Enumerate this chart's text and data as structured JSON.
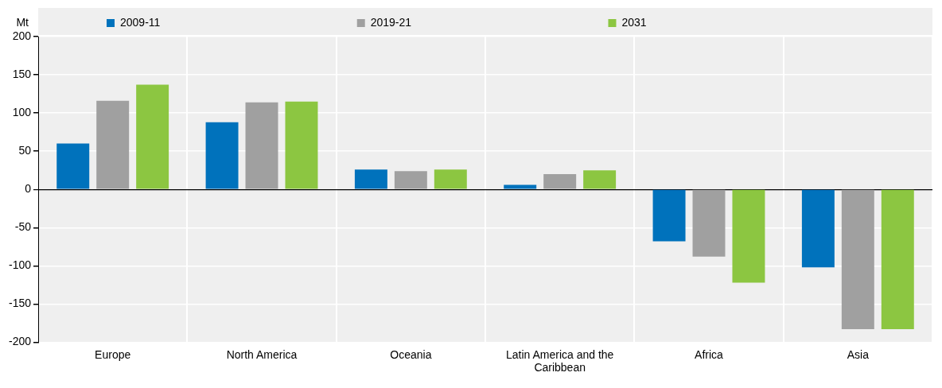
{
  "chart_data": {
    "type": "bar",
    "ylabel": "Mt",
    "categories": [
      "Europe",
      "North America",
      "Oceania",
      "Latin America and the Caribbean",
      "Africa",
      "Asia"
    ],
    "series": [
      {
        "name": "2009-11",
        "color": "#0072bc",
        "values": [
          60,
          88,
          26,
          6,
          -68,
          -102
        ]
      },
      {
        "name": "2019-21",
        "color": "#a0a0a0",
        "values": [
          116,
          114,
          24,
          20,
          -88,
          -183
        ]
      },
      {
        "name": "2031",
        "color": "#8cc641",
        "values": [
          137,
          115,
          26,
          25,
          -122,
          -183
        ]
      }
    ],
    "ylim": [
      -200,
      200
    ],
    "yticks": [
      -200,
      -150,
      -100,
      -50,
      0,
      50,
      100,
      150,
      200
    ],
    "grid": true,
    "legend": "top"
  }
}
